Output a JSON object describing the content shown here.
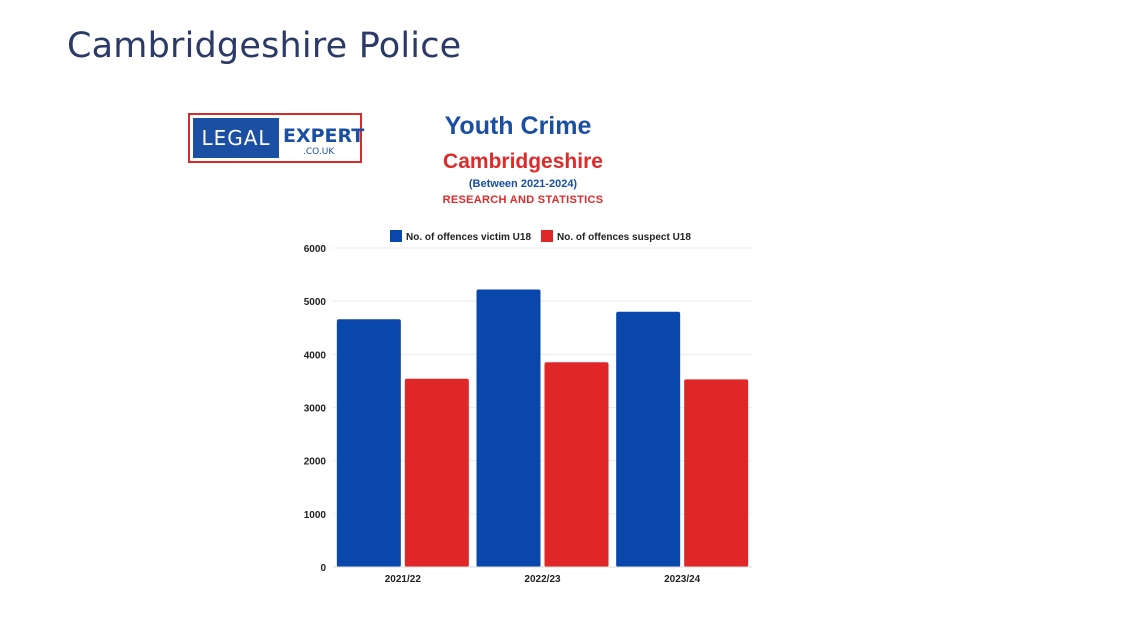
{
  "page": {
    "title": "Cambridgeshire Police"
  },
  "logo": {
    "word1": "LEGAL",
    "word2": "EXPERT",
    "domain": ".CO.UK"
  },
  "infographic": {
    "title": "Youth Crime",
    "subtitle": "Cambridgeshire",
    "period": "(Between 2021-2024)",
    "tagline": "RESEARCH AND STATISTICS"
  },
  "colors": {
    "blue": "#0a47ad",
    "red": "#e02626",
    "title_text": "#2b3a67"
  },
  "chart_data": {
    "type": "bar",
    "categories": [
      "2021/22",
      "2022/23",
      "2023/24"
    ],
    "series": [
      {
        "name": "No. of offences victim U18",
        "values": [
          4660,
          5220,
          4800
        ],
        "color": "#0a47ad"
      },
      {
        "name": "No. of offences suspect U18",
        "values": [
          3540,
          3850,
          3530
        ],
        "color": "#e02626"
      }
    ],
    "yticks": [
      0,
      1000,
      2000,
      3000,
      4000,
      5000,
      6000
    ],
    "ylim": [
      0,
      6000
    ],
    "xlabel": "",
    "ylabel": "",
    "legend": "top",
    "grid": true
  }
}
